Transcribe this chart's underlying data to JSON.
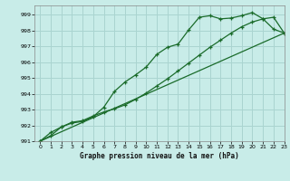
{
  "title": "Graphe pression niveau de la mer (hPa)",
  "bg_color": "#c8ece8",
  "grid_color": "#aad4d0",
  "line_color": "#1a6b2a",
  "xlim": [
    -0.5,
    23
  ],
  "ylim": [
    991.0,
    999.6
  ],
  "yticks": [
    991,
    992,
    993,
    994,
    995,
    996,
    997,
    998,
    999
  ],
  "xticks": [
    0,
    1,
    2,
    3,
    4,
    5,
    6,
    7,
    8,
    9,
    10,
    11,
    12,
    13,
    14,
    15,
    16,
    17,
    18,
    19,
    20,
    21,
    22,
    23
  ],
  "line1_x": [
    0,
    1,
    2,
    3,
    4,
    5,
    6,
    7,
    8,
    9,
    10,
    11,
    12,
    13,
    14,
    15,
    16,
    17,
    18,
    19,
    20,
    21,
    22,
    23
  ],
  "line1_y": [
    991.0,
    991.35,
    991.9,
    992.2,
    992.3,
    992.6,
    992.85,
    993.05,
    993.3,
    993.65,
    994.05,
    994.5,
    994.95,
    995.45,
    995.95,
    996.45,
    996.95,
    997.4,
    997.85,
    998.25,
    998.55,
    998.75,
    998.85,
    997.85
  ],
  "line2_x": [
    0,
    1,
    2,
    3,
    4,
    5,
    6,
    7,
    8,
    9,
    10,
    11,
    12,
    13,
    14,
    15,
    16,
    17,
    18,
    19,
    20,
    21,
    22,
    23
  ],
  "line2_y": [
    991.0,
    991.55,
    991.9,
    992.15,
    992.25,
    992.55,
    993.15,
    994.15,
    994.75,
    995.2,
    995.7,
    996.5,
    996.95,
    997.15,
    998.05,
    998.85,
    998.95,
    998.75,
    998.8,
    998.95,
    999.15,
    998.75,
    998.1,
    997.85
  ],
  "line3_x": [
    0,
    23
  ],
  "line3_y": [
    991.0,
    997.85
  ]
}
